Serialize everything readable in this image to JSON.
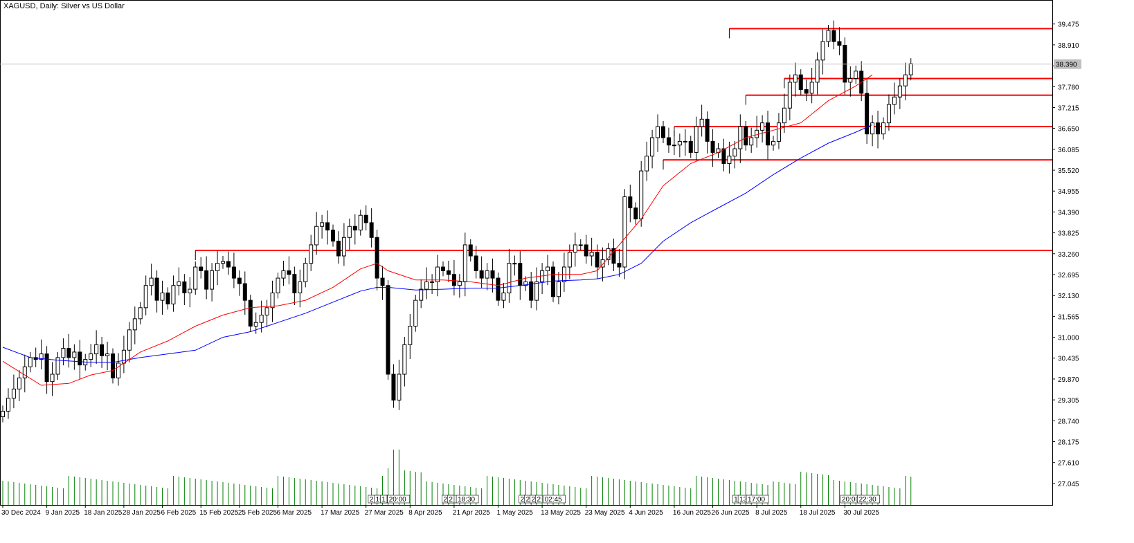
{
  "header": {
    "title": "XAGUSD, Daily:  Silver vs US Dollar"
  },
  "colors": {
    "bull_fill": "#ffffff",
    "bear_fill": "#000000",
    "wick": "#000000",
    "ma_fast": "#ff0000",
    "ma_slow": "#0000ff",
    "level": "#ff0000",
    "volume": "#008000",
    "bid": "#c0c0c0"
  },
  "chart_data": {
    "type": "candlestick",
    "title": "XAGUSD, Daily:  Silver vs US Dollar",
    "ylim": [
      26.5,
      39.9
    ],
    "y_ticks": [
      "39.475",
      "38.910",
      "38.390",
      "37.780",
      "37.215",
      "36.650",
      "36.085",
      "35.520",
      "34.955",
      "34.390",
      "33.825",
      "33.260",
      "32.695",
      "32.130",
      "31.565",
      "31.000",
      "30.435",
      "29.870",
      "29.305",
      "28.740",
      "28.175",
      "27.610",
      "27.045"
    ],
    "x_ticks": [
      {
        "label": "30 Dec 2024",
        "i": 0
      },
      {
        "label": "9 Jan 2025",
        "i": 8
      },
      {
        "label": "18 Jan 2025",
        "i": 15
      },
      {
        "label": "28 Jan 2025",
        "i": 22
      },
      {
        "label": "6 Feb 2025",
        "i": 29
      },
      {
        "label": "15 Feb 2025",
        "i": 36
      },
      {
        "label": "25 Feb 2025",
        "i": 43
      },
      {
        "label": "6 Mar 2025",
        "i": 50
      },
      {
        "label": "17 Mar 2025",
        "i": 58
      },
      {
        "label": "27 Mar 2025",
        "i": 66
      },
      {
        "label": "8 Apr 2025",
        "i": 74
      },
      {
        "label": "21 Apr 2025",
        "i": 82
      },
      {
        "label": "1 May 2025",
        "i": 90
      },
      {
        "label": "13 May 2025",
        "i": 98
      },
      {
        "label": "23 May 2025",
        "i": 106
      },
      {
        "label": "4 Jun 2025",
        "i": 114
      },
      {
        "label": "16 Jun 2025",
        "i": 122
      },
      {
        "label": "26 Jun 2025",
        "i": 129
      },
      {
        "label": "8 Jul 2025",
        "i": 137
      },
      {
        "label": "18 Jul 2025",
        "i": 145
      },
      {
        "label": "30 Jul 2025",
        "i": 153
      }
    ],
    "bid_price": "38.390",
    "bid_value": 38.39,
    "closes": [
      29.0,
      29.35,
      29.6,
      29.9,
      30.2,
      30.45,
      30.4,
      30.55,
      29.8,
      30.0,
      30.45,
      30.7,
      30.45,
      30.6,
      30.25,
      30.4,
      30.55,
      30.8,
      30.5,
      30.55,
      29.9,
      30.3,
      30.65,
      31.2,
      31.5,
      31.8,
      32.4,
      32.6,
      32.0,
      32.2,
      31.9,
      32.4,
      32.5,
      32.2,
      32.3,
      32.9,
      32.8,
      32.3,
      32.8,
      33.0,
      33.05,
      32.9,
      32.6,
      32.45,
      32.0,
      31.3,
      31.4,
      31.6,
      31.8,
      32.2,
      32.6,
      32.8,
      32.7,
      32.2,
      32.5,
      33.0,
      33.5,
      34.0,
      34.1,
      33.9,
      33.6,
      33.2,
      33.7,
      34.0,
      33.9,
      34.3,
      34.1,
      33.7,
      32.6,
      32.4,
      30.0,
      29.3,
      30.0,
      30.8,
      31.3,
      32.0,
      32.3,
      32.5,
      32.5,
      32.9,
      32.8,
      32.7,
      32.4,
      32.5,
      33.5,
      33.2,
      32.8,
      32.6,
      32.8,
      32.6,
      32.0,
      32.2,
      33.0,
      33.0,
      32.4,
      32.5,
      32.0,
      32.5,
      32.8,
      32.9,
      32.1,
      32.5,
      32.9,
      33.3,
      33.5,
      33.5,
      33.2,
      33.3,
      32.9,
      33.1,
      33.4,
      33.0,
      32.9,
      34.8,
      34.5,
      34.2,
      35.5,
      35.9,
      36.4,
      36.7,
      36.4,
      36.2,
      36.2,
      36.3,
      36.3,
      36.0,
      36.7,
      36.9,
      36.3,
      36.0,
      36.1,
      35.7,
      35.9,
      36.1,
      36.7,
      36.2,
      36.4,
      36.6,
      36.8,
      36.2,
      36.3,
      36.8,
      37.2,
      37.9,
      38.1,
      37.7,
      37.6,
      37.9,
      38.5,
      39.0,
      39.3,
      39.0,
      38.9,
      37.9,
      38.0,
      38.2,
      37.6,
      36.5,
      36.8,
      36.5,
      36.8,
      37.3,
      37.5,
      37.8,
      38.1,
      38.4
    ],
    "ma_fast": [
      [
        0,
        30.35
      ],
      [
        7,
        29.7
      ],
      [
        12,
        29.75
      ],
      [
        16,
        29.98
      ],
      [
        20,
        30.1
      ],
      [
        25,
        30.6
      ],
      [
        30,
        30.9
      ],
      [
        35,
        31.3
      ],
      [
        40,
        31.6
      ],
      [
        45,
        31.8
      ],
      [
        50,
        31.85
      ],
      [
        55,
        32.0
      ],
      [
        60,
        32.35
      ],
      [
        65,
        32.85
      ],
      [
        68,
        33.0
      ],
      [
        70,
        32.8
      ],
      [
        75,
        32.55
      ],
      [
        80,
        32.55
      ],
      [
        85,
        32.5
      ],
      [
        90,
        32.4
      ],
      [
        95,
        32.6
      ],
      [
        100,
        32.7
      ],
      [
        105,
        32.7
      ],
      [
        108,
        32.8
      ],
      [
        112,
        33.5
      ],
      [
        116,
        34.2
      ],
      [
        120,
        35.1
      ],
      [
        125,
        35.7
      ],
      [
        130,
        36.0
      ],
      [
        135,
        36.4
      ],
      [
        140,
        36.6
      ],
      [
        145,
        36.8
      ],
      [
        150,
        37.4
      ],
      [
        155,
        37.8
      ],
      [
        158,
        38.1
      ]
    ],
    "ma_slow": [
      [
        0,
        30.73
      ],
      [
        5,
        30.45
      ],
      [
        10,
        30.38
      ],
      [
        15,
        30.33
      ],
      [
        20,
        30.32
      ],
      [
        25,
        30.45
      ],
      [
        30,
        30.55
      ],
      [
        35,
        30.65
      ],
      [
        40,
        31.0
      ],
      [
        45,
        31.15
      ],
      [
        50,
        31.4
      ],
      [
        55,
        31.65
      ],
      [
        60,
        31.95
      ],
      [
        65,
        32.25
      ],
      [
        68,
        32.35
      ],
      [
        70,
        32.35
      ],
      [
        75,
        32.28
      ],
      [
        80,
        32.3
      ],
      [
        85,
        32.33
      ],
      [
        90,
        32.33
      ],
      [
        95,
        32.42
      ],
      [
        100,
        32.52
      ],
      [
        105,
        32.55
      ],
      [
        108,
        32.58
      ],
      [
        112,
        32.7
      ],
      [
        116,
        33.0
      ],
      [
        120,
        33.6
      ],
      [
        125,
        34.1
      ],
      [
        130,
        34.5
      ],
      [
        135,
        34.9
      ],
      [
        140,
        35.4
      ],
      [
        145,
        35.85
      ],
      [
        150,
        36.25
      ],
      [
        155,
        36.55
      ],
      [
        158,
        36.75
      ]
    ],
    "levels": [
      {
        "price": 39.35,
        "from": 132
      },
      {
        "price": 38.0,
        "from": 142
      },
      {
        "price": 37.55,
        "from": 135
      },
      {
        "price": 36.7,
        "from": 122
      },
      {
        "price": 35.8,
        "from": 120
      },
      {
        "price": 33.35,
        "from": 35
      }
    ],
    "volume_tags": [
      "2:",
      "16:",
      "1",
      "20:00",
      "20:",
      "2",
      "18:30",
      "2",
      "2",
      "2",
      "2",
      "02:45",
      "1",
      "13:",
      "17:00",
      "20:00",
      "22:30"
    ]
  }
}
